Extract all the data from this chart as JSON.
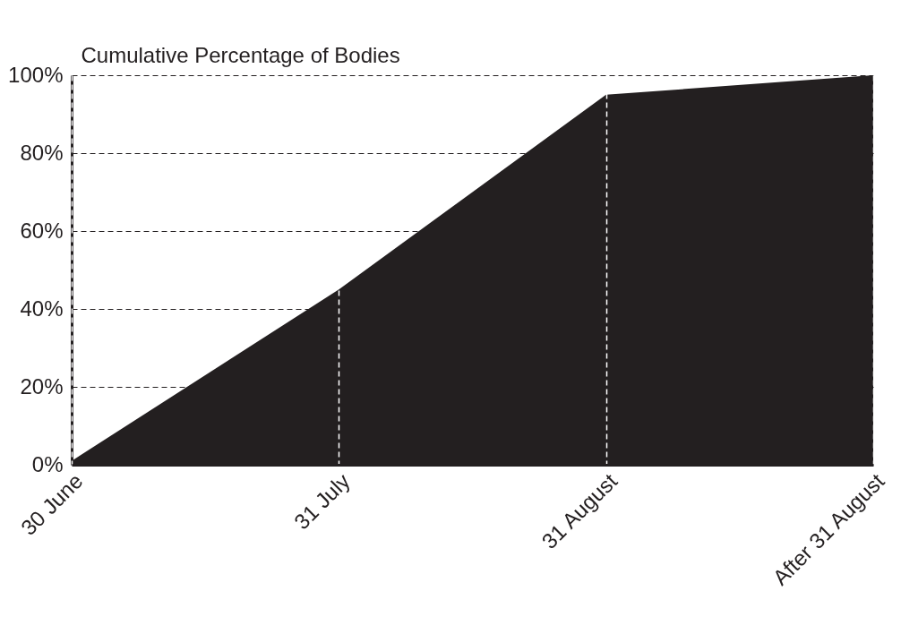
{
  "chart_data": {
    "type": "area",
    "ylabel": "Cumulative Percentage of Bodies",
    "categories": [
      "30 June",
      "31 July",
      "31 August",
      "After 31 August"
    ],
    "series": [
      {
        "color": "#231f20",
        "values": [
          1,
          45,
          95,
          100
        ]
      }
    ],
    "ylim": [
      0,
      100
    ],
    "yticks": [
      {
        "value": 0,
        "label": "0%"
      },
      {
        "value": 20,
        "label": "20%"
      },
      {
        "value": 40,
        "label": "40%"
      },
      {
        "value": 60,
        "label": "60%"
      },
      {
        "value": 80,
        "label": "80%"
      },
      {
        "value": 100,
        "label": "100%"
      }
    ],
    "grid": true
  }
}
